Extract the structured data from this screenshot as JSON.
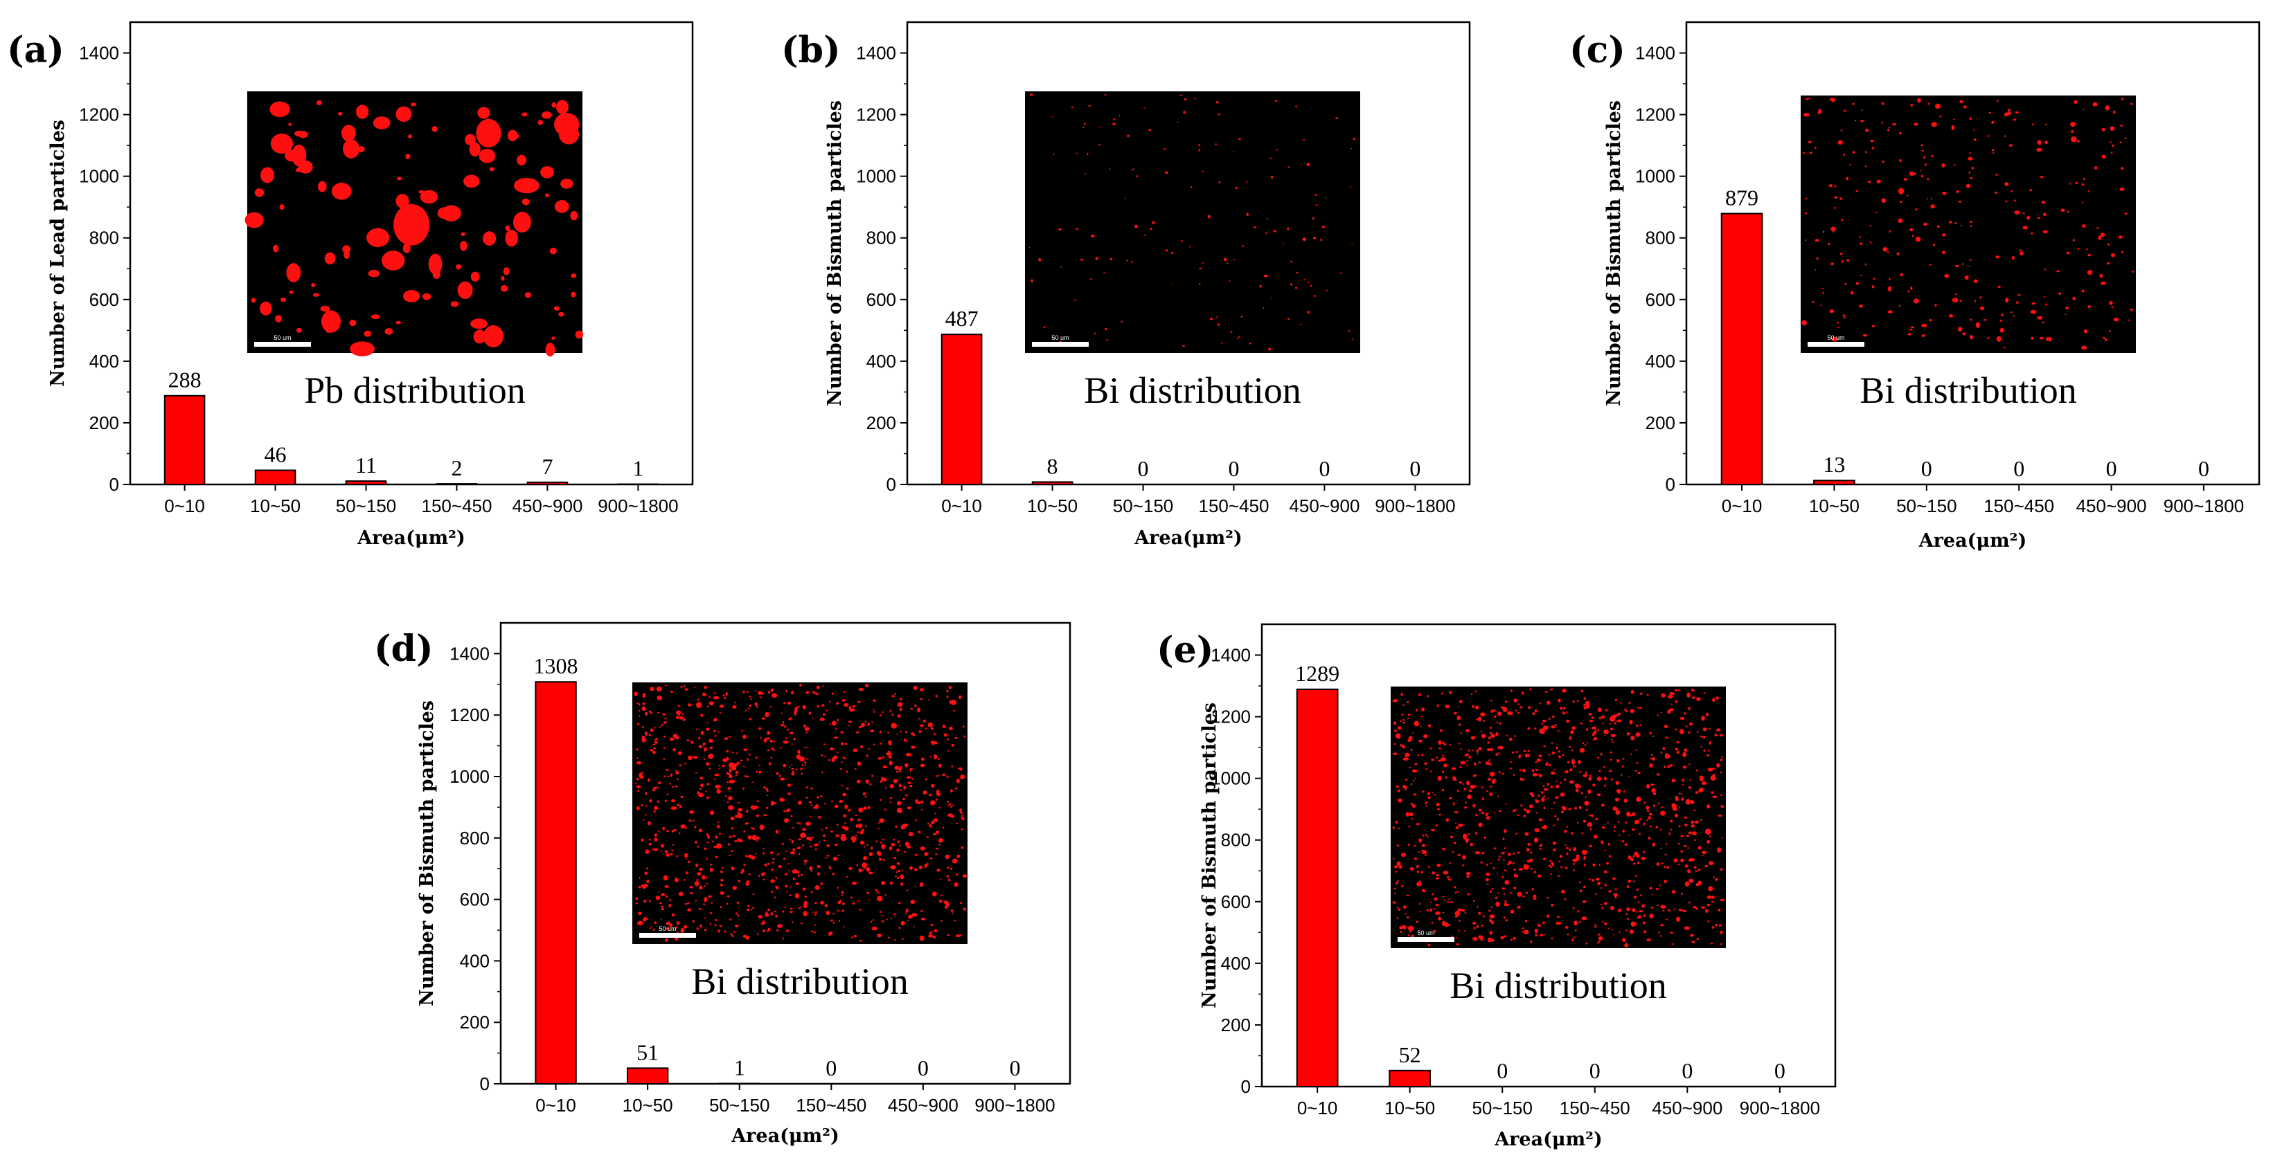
{
  "colors": {
    "bar": "#ff0000",
    "bar_edge": "#000000",
    "inset_bg": "#000000",
    "particle": "#ff1010",
    "axis": "#000000"
  },
  "chart_data": [
    {
      "panel": "(a)",
      "type": "bar",
      "categories": [
        "0~10",
        "10~50",
        "50~150",
        "150~450",
        "450~900",
        "900~1800"
      ],
      "values": [
        288,
        46,
        11,
        2,
        7,
        1
      ],
      "value_labels": [
        "288",
        "46",
        "11",
        "2",
        "7",
        "1"
      ],
      "xlabel": "Area(μm²)",
      "ylabel": "Number of Lead particles",
      "ylim": [
        0,
        1500
      ],
      "yticks": [
        "0",
        "200",
        "400",
        "600",
        "800",
        "1000",
        "1200",
        "1400"
      ],
      "grid": false,
      "legend": "none",
      "inset": {
        "caption": "Pb distribution",
        "scale_bar": "50 um"
      }
    },
    {
      "panel": "(b)",
      "type": "bar",
      "categories": [
        "0~10",
        "10~50",
        "50~150",
        "150~450",
        "450~900",
        "900~1800"
      ],
      "values": [
        487,
        8,
        0,
        0,
        0,
        0
      ],
      "value_labels": [
        "487",
        "8",
        "0",
        "0",
        "0",
        "0"
      ],
      "xlabel": "Area(μm²)",
      "ylabel": "Number of  Bismuth particles",
      "ylim": [
        0,
        1500
      ],
      "yticks": [
        "0",
        "200",
        "400",
        "600",
        "800",
        "1000",
        "1200",
        "1400"
      ],
      "grid": false,
      "legend": "none",
      "inset": {
        "caption": "Bi distribution",
        "scale_bar": "50 um"
      }
    },
    {
      "panel": "(c)",
      "type": "bar",
      "categories": [
        "0~10",
        "10~50",
        "50~150",
        "150~450",
        "450~900",
        "900~1800"
      ],
      "values": [
        879,
        13,
        0,
        0,
        0,
        0
      ],
      "value_labels": [
        "879",
        "13",
        "0",
        "0",
        "0",
        "0"
      ],
      "xlabel": "Area(μm²)",
      "ylabel": "Number of  Bismuth particles",
      "ylim": [
        0,
        1500
      ],
      "yticks": [
        "0",
        "200",
        "400",
        "600",
        "800",
        "1000",
        "1200",
        "1400"
      ],
      "grid": false,
      "legend": "none",
      "inset": {
        "caption": "Bi distribution",
        "scale_bar": "50 um"
      }
    },
    {
      "panel": "(d)",
      "type": "bar",
      "categories": [
        "0~10",
        "10~50",
        "50~150",
        "150~450",
        "450~900",
        "900~1800"
      ],
      "values": [
        1308,
        51,
        1,
        0,
        0,
        0
      ],
      "value_labels": [
        "1308",
        "51",
        "1",
        "0",
        "0",
        "0"
      ],
      "xlabel": "Area(μm²)",
      "ylabel": "Number of  Bismuth particles",
      "ylim": [
        0,
        1500
      ],
      "yticks": [
        "0",
        "200",
        "400",
        "600",
        "800",
        "1000",
        "1200",
        "1400"
      ],
      "grid": false,
      "legend": "none",
      "inset": {
        "caption": "Bi distribution",
        "scale_bar": "50 um"
      }
    },
    {
      "panel": "(e)",
      "type": "bar",
      "categories": [
        "0~10",
        "10~50",
        "50~150",
        "150~450",
        "450~900",
        "900~1800"
      ],
      "values": [
        1289,
        52,
        0,
        0,
        0,
        0
      ],
      "value_labels": [
        "1289",
        "52",
        "0",
        "0",
        "0",
        "0"
      ],
      "xlabel": "Area(μm²)",
      "ylabel": "Number of  Bismuth particles",
      "ylim": [
        0,
        1500
      ],
      "yticks": [
        "0",
        "200",
        "400",
        "600",
        "800",
        "1000",
        "1200",
        "1400"
      ],
      "grid": false,
      "legend": "none",
      "inset": {
        "caption": "Bi distribution",
        "scale_bar": "50 um"
      }
    }
  ]
}
